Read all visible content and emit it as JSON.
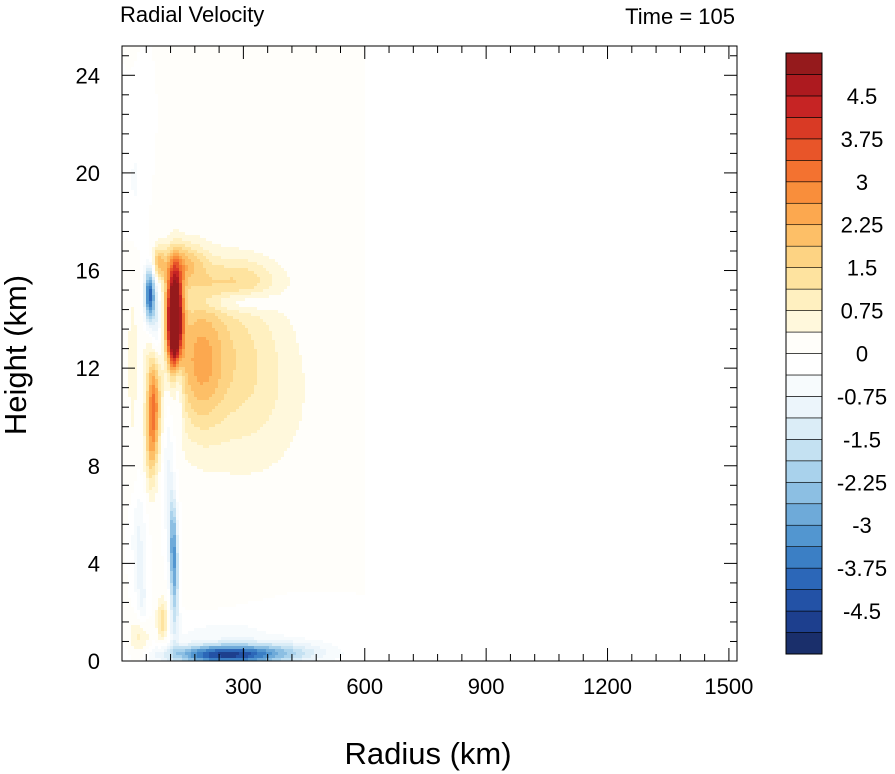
{
  "chart_data": {
    "type": "heatmap",
    "title_left": "Radial Velocity",
    "title_right": "Time = 105",
    "xlabel": "Radius (km)",
    "ylabel": "Height (km)",
    "xlim": [
      0,
      1520
    ],
    "ylim": [
      0,
      25.2
    ],
    "x_ticks": [
      300,
      600,
      900,
      1200,
      1500
    ],
    "x_tick_labels": [
      "300",
      "600",
      "900",
      "1200",
      "1500"
    ],
    "y_ticks": [
      0,
      4,
      8,
      12,
      16,
      20,
      24
    ],
    "y_tick_labels": [
      "0",
      "4",
      "8",
      "12",
      "16",
      "20",
      "24"
    ],
    "colorbar": {
      "min": -5.25,
      "max": 5.25,
      "step": 0.375,
      "tick_values": [
        4.5,
        3.75,
        3,
        2.25,
        1.5,
        0.75,
        0,
        -0.75,
        -1.5,
        -2.25,
        -3,
        -3.75,
        -4.5
      ],
      "tick_labels": [
        "4.5",
        "3.75",
        "3",
        "2.25",
        "1.5",
        "0.75",
        "0",
        "-0.75",
        "-1.5",
        "-2.25",
        "-3",
        "-3.75",
        "-4.5"
      ],
      "colors": [
        "#1a2f6b",
        "#1d3f8e",
        "#2352a6",
        "#2c67b8",
        "#3b7fc5",
        "#5296d0",
        "#6eaad9",
        "#8cbfe3",
        "#a9d2ec",
        "#c4e1f2",
        "#dbedf7",
        "#ecf5fb",
        "#f7fbfd",
        "#ffffff",
        "#fffefa",
        "#fff8dc",
        "#fff0c0",
        "#fee39f",
        "#fdd383",
        "#fdbf67",
        "#fca84f",
        "#f98e3b",
        "#f37230",
        "#e85529",
        "#d93a25",
        "#c62424",
        "#ad1a1f",
        "#951a1c"
      ]
    },
    "features": [
      {
        "x": 130,
        "y": 14.5,
        "sx": 14,
        "sy": 1.2,
        "v": 6.0
      },
      {
        "x": 130,
        "y": 13.0,
        "sx": 12,
        "sy": 0.8,
        "v": 3.0
      },
      {
        "x": 155,
        "y": 16.3,
        "sx": 35,
        "sy": 0.6,
        "v": 1.5
      },
      {
        "x": 90,
        "y": 16.3,
        "sx": 12,
        "sy": 0.5,
        "v": 1.8
      },
      {
        "x": 68,
        "y": 15.0,
        "sx": 9,
        "sy": 0.8,
        "v": -4.0
      },
      {
        "x": 85,
        "y": 13.8,
        "sx": 10,
        "sy": 1.3,
        "v": -1.5
      },
      {
        "x": 240,
        "y": 13.0,
        "sx": 100,
        "sy": 2.3,
        "v": 1.1
      },
      {
        "x": 190,
        "y": 12.2,
        "sx": 40,
        "sy": 2.0,
        "v": 1.3
      },
      {
        "x": 320,
        "y": 10.5,
        "sx": 110,
        "sy": 2.5,
        "v": 0.6
      },
      {
        "x": 290,
        "y": 15.7,
        "sx": 70,
        "sy": 0.6,
        "v": 0.9
      },
      {
        "x": 290,
        "y": 14.7,
        "sx": 70,
        "sy": 0.3,
        "v": -0.8
      },
      {
        "x": 78,
        "y": 10.5,
        "sx": 12,
        "sy": 1.6,
        "v": 2.8
      },
      {
        "x": 70,
        "y": 8.5,
        "sx": 10,
        "sy": 1.3,
        "v": 1.0
      },
      {
        "x": 115,
        "y": 8.0,
        "sx": 10,
        "sy": 2.5,
        "v": -0.9
      },
      {
        "x": 140,
        "y": 11.5,
        "sx": 8,
        "sy": 1.5,
        "v": -1.0
      },
      {
        "x": 130,
        "y": 3.5,
        "sx": 8,
        "sy": 1.6,
        "v": -2.6
      },
      {
        "x": 125,
        "y": 5.2,
        "sx": 6,
        "sy": 1.2,
        "v": -1.5
      },
      {
        "x": 40,
        "y": 5.0,
        "sx": 14,
        "sy": 1.5,
        "v": -0.9
      },
      {
        "x": 50,
        "y": 2.5,
        "sx": 10,
        "sy": 1.0,
        "v": -0.8
      },
      {
        "x": 100,
        "y": 1.6,
        "sx": 10,
        "sy": 0.6,
        "v": 1.6
      },
      {
        "x": 45,
        "y": 1.0,
        "sx": 18,
        "sy": 0.6,
        "v": 1.1
      },
      {
        "x": 25,
        "y": 11.5,
        "sx": 12,
        "sy": 5.0,
        "v": 0.35
      },
      {
        "x": 30,
        "y": 19.5,
        "sx": 15,
        "sy": 1.8,
        "v": -0.5
      },
      {
        "x": 250,
        "y": 0.25,
        "sx": 90,
        "sy": 0.28,
        "v": -4.2
      },
      {
        "x": 400,
        "y": 0.35,
        "sx": 90,
        "sy": 0.35,
        "v": -1.3
      },
      {
        "x": 230,
        "y": 1.2,
        "sx": 110,
        "sy": 0.7,
        "v": -0.6
      },
      {
        "x": 200,
        "y": 3.0,
        "sx": 80,
        "sy": 1.6,
        "v": 0.3
      }
    ]
  }
}
